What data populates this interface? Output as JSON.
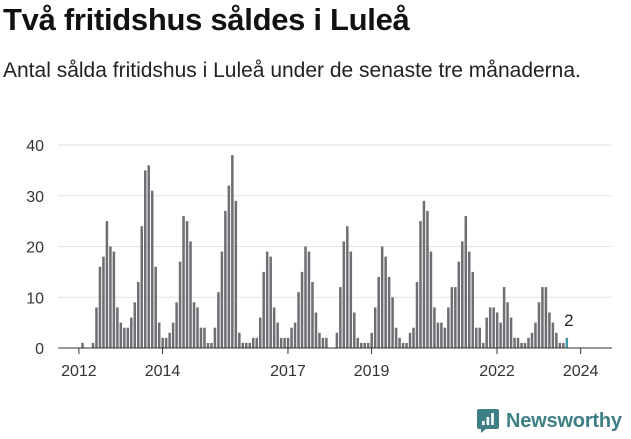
{
  "title": "Två fritidshus såldes i Luleå",
  "subtitle": "Antal sålda fritidshus i Luleå under de senaste tre månaderna.",
  "brand": {
    "name": "Newsworthy",
    "color": "#3e7f86"
  },
  "chart_data": {
    "type": "bar",
    "title": "Två fritidshus såldes i Luleå",
    "subtitle": "Antal sålda fritidshus i Luleå under de senaste tre månaderna.",
    "xlabel": "",
    "ylabel": "",
    "ylim": [
      0,
      40
    ],
    "yticks": [
      0,
      10,
      20,
      30,
      40
    ],
    "grid": true,
    "x_start": 2011.67,
    "x_step": 0.08333,
    "xlim": [
      2011.5,
      2024.75
    ],
    "xticks": [
      {
        "label": "2012",
        "value": 2012
      },
      {
        "label": "2014",
        "value": 2014
      },
      {
        "label": "2017",
        "value": 2017
      },
      {
        "label": "2019",
        "value": 2019
      },
      {
        "label": "2022",
        "value": 2022
      },
      {
        "label": "2024",
        "value": 2024
      }
    ],
    "colors": {
      "bar": "#6e6e73",
      "highlight": "#3e9aa6"
    },
    "highlight_last": true,
    "annotation": {
      "label": "2",
      "target": "last"
    },
    "values": [
      0,
      0,
      0,
      0,
      0,
      1,
      0,
      0,
      1,
      8,
      16,
      18,
      25,
      20,
      19,
      8,
      5,
      4,
      4,
      6,
      9,
      13,
      24,
      35,
      36,
      31,
      16,
      5,
      2,
      2,
      3,
      5,
      9,
      17,
      26,
      25,
      21,
      9,
      8,
      4,
      4,
      1,
      1,
      4,
      11,
      19,
      27,
      32,
      38,
      29,
      3,
      1,
      1,
      1,
      2,
      2,
      6,
      15,
      19,
      18,
      8,
      5,
      2,
      2,
      2,
      4,
      5,
      11,
      15,
      20,
      19,
      13,
      7,
      3,
      2,
      2,
      0,
      0,
      3,
      12,
      21,
      24,
      19,
      7,
      2,
      1,
      1,
      1,
      3,
      8,
      14,
      20,
      18,
      14,
      10,
      4,
      2,
      1,
      1,
      3,
      4,
      13,
      25,
      29,
      27,
      19,
      8,
      5,
      5,
      4,
      8,
      12,
      12,
      17,
      21,
      26,
      19,
      15,
      4,
      4,
      1,
      6,
      8,
      8,
      7,
      5,
      12,
      9,
      6,
      2,
      2,
      1,
      1,
      2,
      3,
      5,
      9,
      12,
      12,
      7,
      5,
      3,
      1,
      1,
      2
    ]
  }
}
